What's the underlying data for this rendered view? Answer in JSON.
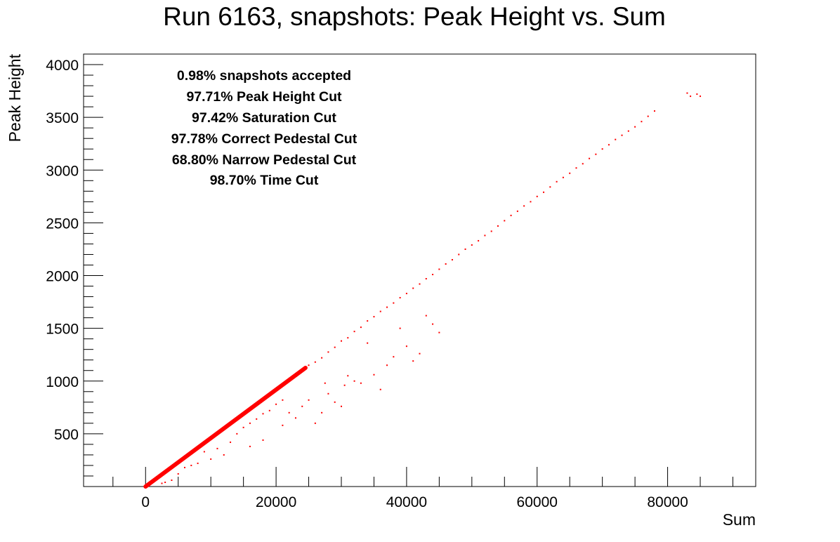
{
  "chart_data": {
    "type": "scatter",
    "title": "Run 6163, snapshots: Peak Height vs. Sum",
    "xlabel": "Sum",
    "ylabel": "Peak Height",
    "xlim": [
      -9500,
      93500
    ],
    "ylim": [
      0,
      4100
    ],
    "x_ticks": [
      {
        "value": 0,
        "label": "0"
      },
      {
        "value": 20000,
        "label": "20000"
      },
      {
        "value": 40000,
        "label": "40000"
      },
      {
        "value": 60000,
        "label": "60000"
      },
      {
        "value": 80000,
        "label": "80000"
      }
    ],
    "y_ticks": [
      {
        "value": 500,
        "label": "500"
      },
      {
        "value": 1000,
        "label": "1000"
      },
      {
        "value": 1500,
        "label": "1500"
      },
      {
        "value": 2000,
        "label": "2000"
      },
      {
        "value": 2500,
        "label": "2500"
      },
      {
        "value": 3000,
        "label": "3000"
      },
      {
        "value": 3500,
        "label": "3500"
      },
      {
        "value": 4000,
        "label": "4000"
      }
    ],
    "grid": false,
    "legend": "none",
    "marker_color": "#ff0000",
    "annotations": [
      "0.98% snapshots accepted",
      "97.71% Peak Height Cut",
      "97.42% Saturation Cut",
      "97.78% Correct Pedestal Cut",
      "68.80% Narrow Pedestal Cut",
      "98.70% Time Cut"
    ],
    "points": [
      [
        0,
        0
      ],
      [
        500,
        20
      ],
      [
        1000,
        45
      ],
      [
        1500,
        70
      ],
      [
        2000,
        90
      ],
      [
        2500,
        115
      ],
      [
        3000,
        140
      ],
      [
        3500,
        160
      ],
      [
        4000,
        185
      ],
      [
        4500,
        205
      ],
      [
        5000,
        230
      ],
      [
        5500,
        255
      ],
      [
        6000,
        275
      ],
      [
        6500,
        300
      ],
      [
        7000,
        320
      ],
      [
        7500,
        345
      ],
      [
        8000,
        370
      ],
      [
        8500,
        390
      ],
      [
        9000,
        415
      ],
      [
        9500,
        435
      ],
      [
        10000,
        460
      ],
      [
        10500,
        485
      ],
      [
        11000,
        505
      ],
      [
        11500,
        530
      ],
      [
        12000,
        550
      ],
      [
        12500,
        575
      ],
      [
        13000,
        600
      ],
      [
        13500,
        620
      ],
      [
        14000,
        645
      ],
      [
        14500,
        665
      ],
      [
        15000,
        690
      ],
      [
        15500,
        715
      ],
      [
        16000,
        735
      ],
      [
        16500,
        760
      ],
      [
        17000,
        780
      ],
      [
        17500,
        805
      ],
      [
        18000,
        830
      ],
      [
        18500,
        850
      ],
      [
        19000,
        875
      ],
      [
        19500,
        895
      ],
      [
        20000,
        920
      ],
      [
        20500,
        945
      ],
      [
        21000,
        965
      ],
      [
        21500,
        990
      ],
      [
        22000,
        1010
      ],
      [
        22500,
        1035
      ],
      [
        23000,
        1060
      ],
      [
        23500,
        1080
      ],
      [
        24000,
        1105
      ],
      [
        24500,
        1125
      ],
      [
        25000,
        1150
      ],
      [
        26000,
        1180
      ],
      [
        27000,
        1220
      ],
      [
        28000,
        1275
      ],
      [
        29000,
        1320
      ],
      [
        30000,
        1380
      ],
      [
        31000,
        1410
      ],
      [
        32000,
        1470
      ],
      [
        33000,
        1510
      ],
      [
        34000,
        1570
      ],
      [
        35000,
        1610
      ],
      [
        36000,
        1660
      ],
      [
        37000,
        1700
      ],
      [
        38000,
        1740
      ],
      [
        39000,
        1790
      ],
      [
        40000,
        1830
      ],
      [
        41000,
        1880
      ],
      [
        42000,
        1920
      ],
      [
        43000,
        1970
      ],
      [
        44000,
        2010
      ],
      [
        45000,
        2060
      ],
      [
        46000,
        2110
      ],
      [
        47000,
        2150
      ],
      [
        48000,
        2200
      ],
      [
        49000,
        2250
      ],
      [
        50000,
        2290
      ],
      [
        51000,
        2330
      ],
      [
        52000,
        2380
      ],
      [
        53000,
        2420
      ],
      [
        54000,
        2470
      ],
      [
        55000,
        2520
      ],
      [
        56000,
        2570
      ],
      [
        57000,
        2610
      ],
      [
        58000,
        2660
      ],
      [
        59000,
        2700
      ],
      [
        60000,
        2750
      ],
      [
        61000,
        2790
      ],
      [
        62000,
        2840
      ],
      [
        63000,
        2890
      ],
      [
        64000,
        2930
      ],
      [
        65000,
        2970
      ],
      [
        66000,
        3020
      ],
      [
        67000,
        3060
      ],
      [
        68000,
        3110
      ],
      [
        69000,
        3150
      ],
      [
        70000,
        3200
      ],
      [
        71000,
        3240
      ],
      [
        72000,
        3290
      ],
      [
        73000,
        3330
      ],
      [
        74000,
        3370
      ],
      [
        75000,
        3410
      ],
      [
        76000,
        3460
      ],
      [
        77000,
        3510
      ],
      [
        78000,
        3560
      ],
      [
        83000,
        3730
      ],
      [
        83500,
        3700
      ],
      [
        84500,
        3720
      ],
      [
        85000,
        3700
      ],
      [
        5000,
        120
      ],
      [
        7000,
        200
      ],
      [
        9000,
        330
      ],
      [
        11000,
        360
      ],
      [
        13000,
        420
      ],
      [
        14000,
        500
      ],
      [
        15000,
        560
      ],
      [
        16000,
        600
      ],
      [
        17000,
        640
      ],
      [
        18000,
        690
      ],
      [
        19000,
        720
      ],
      [
        20000,
        780
      ],
      [
        21000,
        820
      ],
      [
        22000,
        700
      ],
      [
        23000,
        650
      ],
      [
        24000,
        760
      ],
      [
        25000,
        820
      ],
      [
        26000,
        600
      ],
      [
        27000,
        700
      ],
      [
        28000,
        880
      ],
      [
        29000,
        800
      ],
      [
        30000,
        760
      ],
      [
        30500,
        960
      ],
      [
        31000,
        1050
      ],
      [
        32000,
        1000
      ],
      [
        33000,
        980
      ],
      [
        35000,
        1060
      ],
      [
        36000,
        920
      ],
      [
        37000,
        1150
      ],
      [
        38000,
        1230
      ],
      [
        40000,
        1330
      ],
      [
        41000,
        1190
      ],
      [
        42000,
        1260
      ],
      [
        44000,
        1540
      ],
      [
        45000,
        1460
      ],
      [
        43000,
        1620
      ],
      [
        39000,
        1500
      ],
      [
        34000,
        1360
      ],
      [
        27500,
        980
      ],
      [
        21000,
        580
      ],
      [
        18000,
        440
      ],
      [
        16000,
        380
      ],
      [
        12000,
        300
      ],
      [
        10000,
        260
      ],
      [
        8000,
        220
      ],
      [
        6000,
        180
      ],
      [
        3000,
        40
      ],
      [
        2500,
        30
      ],
      [
        4000,
        60
      ]
    ]
  }
}
